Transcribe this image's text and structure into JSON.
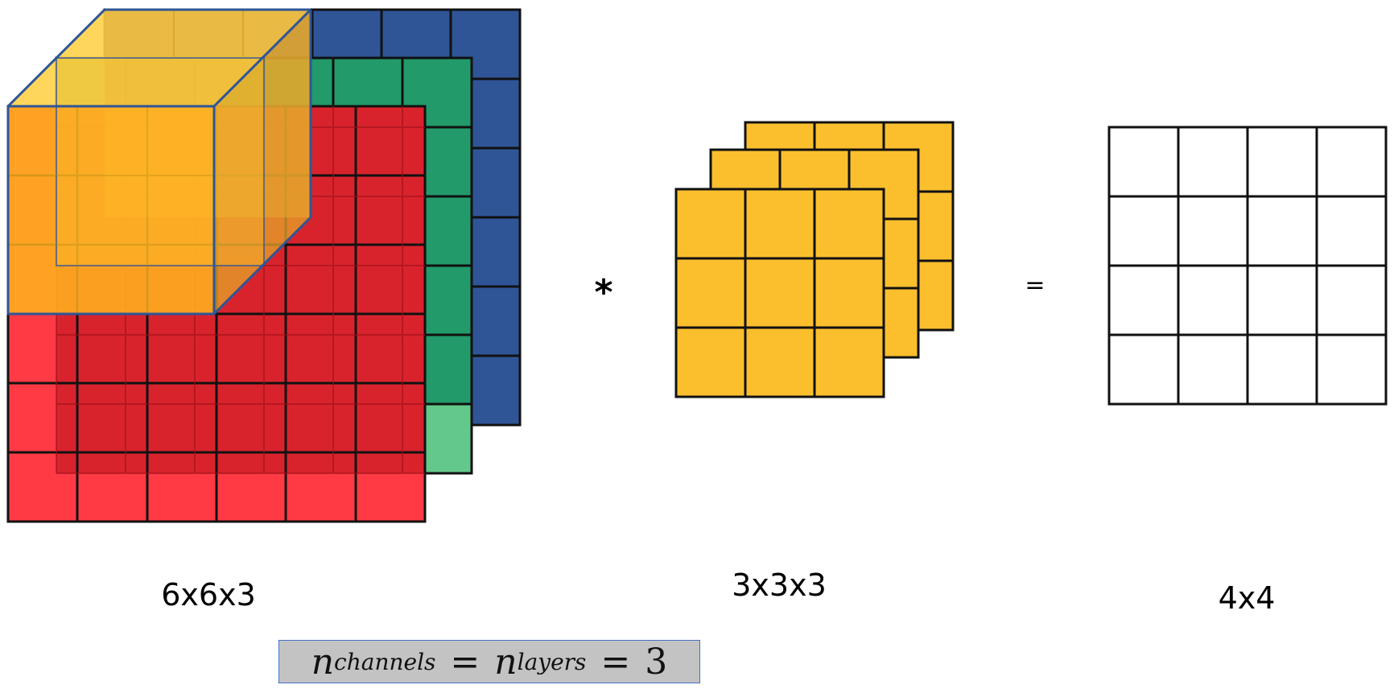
{
  "labels": {
    "input": "6x6x3",
    "filter": "3x3x3",
    "output": "4x4",
    "multiply": "*",
    "equals": "="
  },
  "formula": {
    "var1": "n",
    "sub1": "channels",
    "var2": "n",
    "sub2": "layers",
    "equals": "=",
    "value": "3"
  },
  "colors": {
    "blue_layer": "#2f5597",
    "green_layer": "#229a6a",
    "green_light": "#63c98a",
    "red_layer": "#ff3a45",
    "red_dark": "#d8232d",
    "filter_yellow": "#fbbf2e",
    "cube_yellow": "#ffc000",
    "grid_line": "#111111",
    "cube_edge": "#2f5597",
    "formula_bg": "#c3c3c3"
  }
}
